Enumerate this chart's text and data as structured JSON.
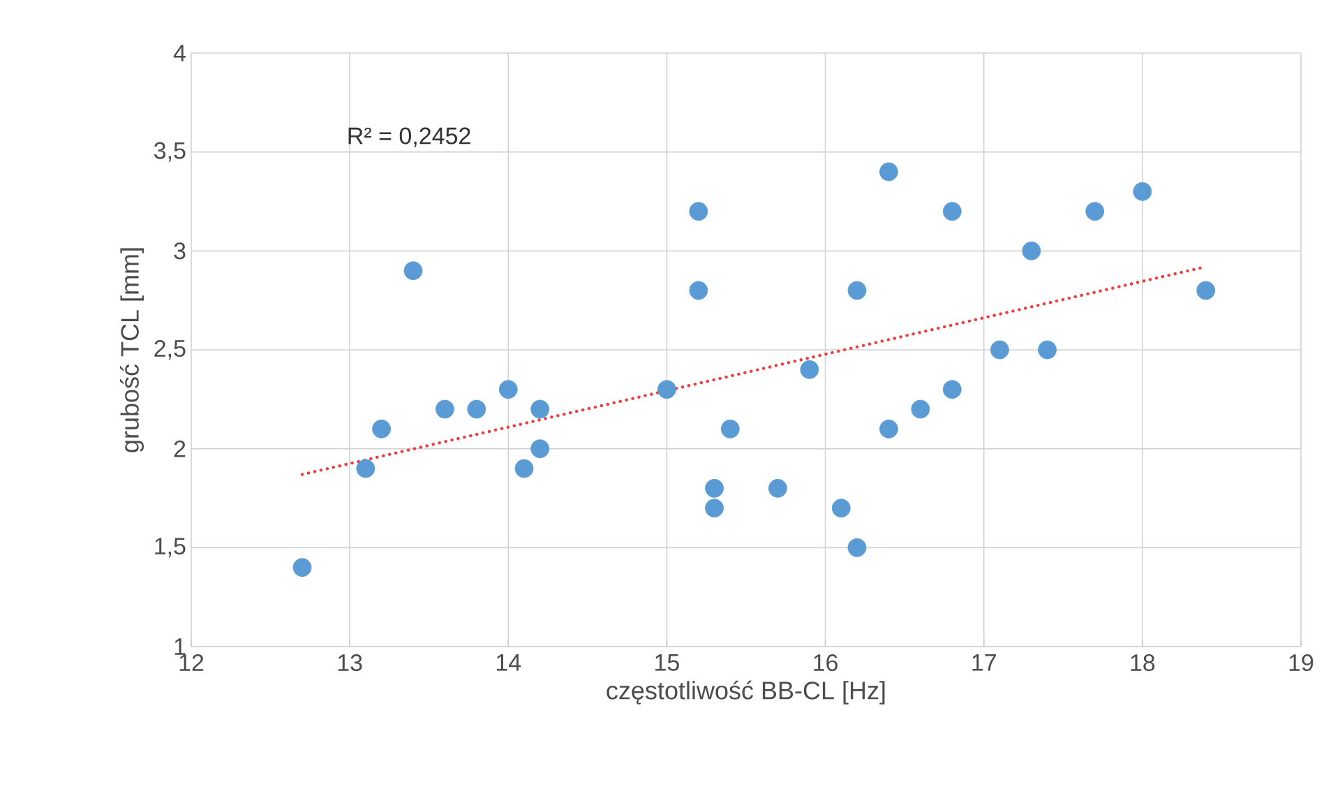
{
  "chart_data": {
    "type": "scatter",
    "xlabel": "częstotliwość BB-CL [Hz]",
    "ylabel": "grubość TCL [mm]",
    "annotations": [
      "R² = 0,2452"
    ],
    "xlim": [
      12,
      19
    ],
    "xticks": [
      12,
      13,
      14,
      15,
      16,
      17,
      18,
      19
    ],
    "ylim": [
      1,
      4
    ],
    "yticks": [
      1,
      {
        "value": 1.5,
        "label": "1,5"
      },
      2,
      {
        "value": 2.5,
        "label": "2,5"
      },
      3,
      {
        "value": 3.5,
        "label": "3,5"
      },
      4
    ],
    "grid": true,
    "series": [
      {
        "color": "#5b9bd5",
        "marker": "circle",
        "x": [
          12.7,
          13.1,
          13.2,
          13.4,
          13.6,
          13.8,
          14.0,
          14.1,
          14.2,
          14.2,
          15.0,
          15.2,
          15.2,
          15.3,
          15.3,
          15.4,
          15.7,
          15.9,
          16.1,
          16.2,
          16.2,
          16.4,
          16.4,
          16.6,
          16.8,
          16.8,
          17.1,
          17.3,
          17.4,
          17.7,
          18.0,
          18.4
        ],
        "values": [
          1.4,
          1.9,
          2.1,
          2.9,
          2.2,
          2.2,
          2.3,
          1.9,
          2.2,
          2.0,
          2.3,
          3.2,
          2.8,
          1.8,
          1.7,
          2.1,
          1.8,
          2.4,
          1.7,
          2.8,
          1.5,
          3.4,
          2.1,
          2.2,
          3.2,
          2.3,
          2.5,
          3.0,
          2.5,
          3.2,
          3.3,
          2.8
        ]
      },
      {
        "type": "line",
        "color": "#f03c3c",
        "line_style": "dotted",
        "marker": "none",
        "x": [
          12.7,
          18.4
        ],
        "values": [
          1.87,
          2.92
        ]
      }
    ]
  }
}
